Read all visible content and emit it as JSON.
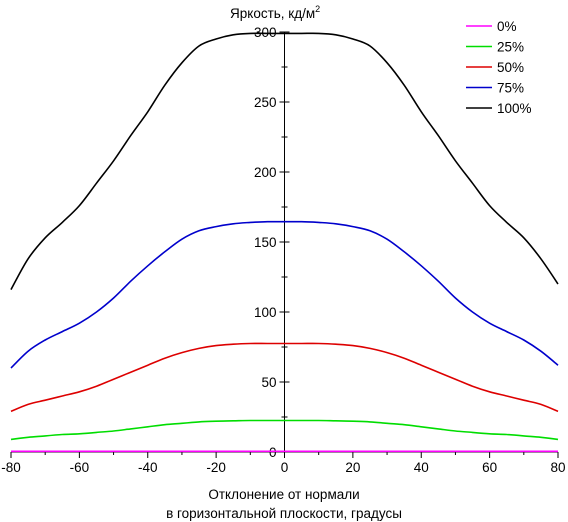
{
  "chart_data": {
    "type": "line",
    "ylabel": "Яркость, кд/м",
    "ylabel_sup": "2",
    "xlabel_line1": "Отклонение от нормали",
    "xlabel_line2": "в горизонтальной плоскости, градусы",
    "xlim": [
      -80,
      80
    ],
    "ylim": [
      0,
      300
    ],
    "xticks": [
      -80,
      -60,
      -40,
      -20,
      0,
      20,
      40,
      60,
      80
    ],
    "yticks": [
      0,
      50,
      100,
      150,
      200,
      250,
      300
    ],
    "xtick_labels": [
      "-80",
      "-60",
      "-40",
      "-20",
      "0",
      "20",
      "40",
      "60",
      "80"
    ],
    "ytick_labels": [
      "0",
      "50",
      "100",
      "150",
      "200",
      "250",
      "300"
    ],
    "grid": false,
    "legend_position": "top-right",
    "x": [
      -80,
      -75,
      -70,
      -65,
      -60,
      -55,
      -50,
      -45,
      -40,
      -35,
      -30,
      -25,
      -20,
      -15,
      -10,
      -5,
      0,
      5,
      10,
      15,
      20,
      25,
      30,
      35,
      40,
      45,
      50,
      55,
      60,
      65,
      70,
      75,
      80
    ],
    "series": [
      {
        "name": "0%",
        "color": "#ff00ff",
        "values": [
          0.5,
          0.5,
          0.5,
          0.5,
          0.5,
          0.5,
          0.5,
          0.5,
          0.5,
          0.5,
          0.5,
          0.5,
          0.5,
          0.5,
          0.5,
          0.5,
          0.5,
          0.5,
          0.5,
          0.5,
          0.5,
          0.5,
          0.5,
          0.5,
          0.5,
          0.5,
          0.5,
          0.5,
          0.5,
          0.5,
          0.5,
          0.5,
          0.5
        ]
      },
      {
        "name": "25%",
        "color": "#00dd00",
        "values": [
          9,
          10.5,
          11.5,
          12.5,
          13,
          14,
          15,
          16.5,
          18,
          19.5,
          20.5,
          21.5,
          22,
          22.3,
          22.5,
          22.5,
          22.5,
          22.5,
          22.5,
          22.3,
          22,
          21.5,
          20.5,
          19.5,
          18,
          16.5,
          15,
          14,
          13,
          12.5,
          11.5,
          10.5,
          9
        ]
      },
      {
        "name": "50%",
        "color": "#dd0000",
        "values": [
          29,
          34,
          37,
          40,
          43,
          47,
          52,
          57,
          62,
          67,
          71,
          74,
          76,
          77,
          77.5,
          77.5,
          77.5,
          77.5,
          77.5,
          77,
          76,
          74,
          71,
          67,
          62,
          57,
          52,
          47,
          43,
          40,
          37,
          34,
          29
        ]
      },
      {
        "name": "75%",
        "color": "#0000cc",
        "values": [
          60,
          72,
          80,
          86,
          92,
          100,
          110,
          122,
          133,
          143,
          152,
          158,
          161,
          163,
          164,
          164.5,
          164.5,
          164.5,
          164,
          163,
          161,
          158,
          152,
          143,
          133,
          122,
          110,
          100,
          92,
          86,
          80,
          72,
          62
        ]
      },
      {
        "name": "100%",
        "color": "#000000",
        "values": [
          116,
          138,
          153,
          164,
          176,
          192,
          208,
          226,
          243,
          262,
          278,
          290,
          295,
          298,
          299,
          299,
          299,
          299,
          299,
          298,
          295,
          290,
          278,
          262,
          243,
          226,
          208,
          192,
          176,
          164,
          153,
          138,
          120
        ]
      }
    ]
  }
}
